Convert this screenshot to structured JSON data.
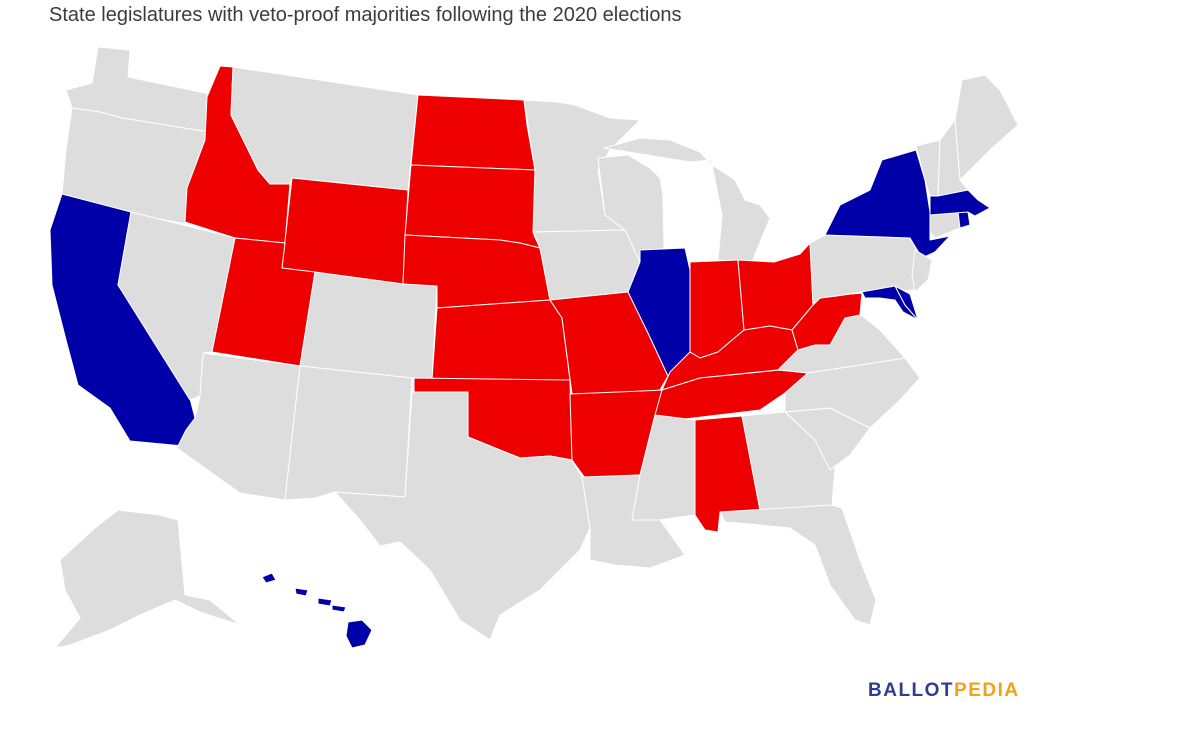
{
  "title": "State legislatures with veto-proof majorities following the 2020 elections",
  "colors": {
    "republican": "#ee0000",
    "democratic": "#0000a8",
    "none": "#dddddd",
    "border": "#ffffff"
  },
  "states": [
    {
      "name": "Washington",
      "status": "none"
    },
    {
      "name": "Oregon",
      "status": "none"
    },
    {
      "name": "California",
      "status": "democratic"
    },
    {
      "name": "Nevada",
      "status": "none"
    },
    {
      "name": "Idaho",
      "status": "republican"
    },
    {
      "name": "Montana",
      "status": "none"
    },
    {
      "name": "Wyoming",
      "status": "republican"
    },
    {
      "name": "Utah",
      "status": "republican"
    },
    {
      "name": "Arizona",
      "status": "none"
    },
    {
      "name": "Colorado",
      "status": "none"
    },
    {
      "name": "New Mexico",
      "status": "none"
    },
    {
      "name": "North Dakota",
      "status": "republican"
    },
    {
      "name": "South Dakota",
      "status": "republican"
    },
    {
      "name": "Nebraska",
      "status": "republican"
    },
    {
      "name": "Kansas",
      "status": "republican"
    },
    {
      "name": "Oklahoma",
      "status": "republican"
    },
    {
      "name": "Texas",
      "status": "none"
    },
    {
      "name": "Minnesota",
      "status": "none"
    },
    {
      "name": "Iowa",
      "status": "none"
    },
    {
      "name": "Missouri",
      "status": "republican"
    },
    {
      "name": "Arkansas",
      "status": "republican"
    },
    {
      "name": "Louisiana",
      "status": "none"
    },
    {
      "name": "Wisconsin",
      "status": "none"
    },
    {
      "name": "Illinois",
      "status": "democratic"
    },
    {
      "name": "Michigan",
      "status": "none"
    },
    {
      "name": "Indiana",
      "status": "republican"
    },
    {
      "name": "Ohio",
      "status": "republican"
    },
    {
      "name": "Kentucky",
      "status": "republican"
    },
    {
      "name": "Tennessee",
      "status": "republican"
    },
    {
      "name": "Mississippi",
      "status": "none"
    },
    {
      "name": "Alabama",
      "status": "republican"
    },
    {
      "name": "Georgia",
      "status": "none"
    },
    {
      "name": "Florida",
      "status": "none"
    },
    {
      "name": "South Carolina",
      "status": "none"
    },
    {
      "name": "North Carolina",
      "status": "none"
    },
    {
      "name": "Virginia",
      "status": "none"
    },
    {
      "name": "West Virginia",
      "status": "republican"
    },
    {
      "name": "Pennsylvania",
      "status": "none"
    },
    {
      "name": "New York",
      "status": "democratic"
    },
    {
      "name": "New Jersey",
      "status": "none"
    },
    {
      "name": "Maryland",
      "status": "democratic"
    },
    {
      "name": "Delaware",
      "status": "democratic"
    },
    {
      "name": "Connecticut",
      "status": "none"
    },
    {
      "name": "Rhode Island",
      "status": "democratic"
    },
    {
      "name": "Massachusetts",
      "status": "democratic"
    },
    {
      "name": "Vermont",
      "status": "none"
    },
    {
      "name": "New Hampshire",
      "status": "none"
    },
    {
      "name": "Maine",
      "status": "none"
    },
    {
      "name": "Alaska",
      "status": "none"
    },
    {
      "name": "Hawaii",
      "status": "democratic"
    }
  ],
  "logo": {
    "part1": "BALLOT",
    "part2": "PEDIA"
  }
}
